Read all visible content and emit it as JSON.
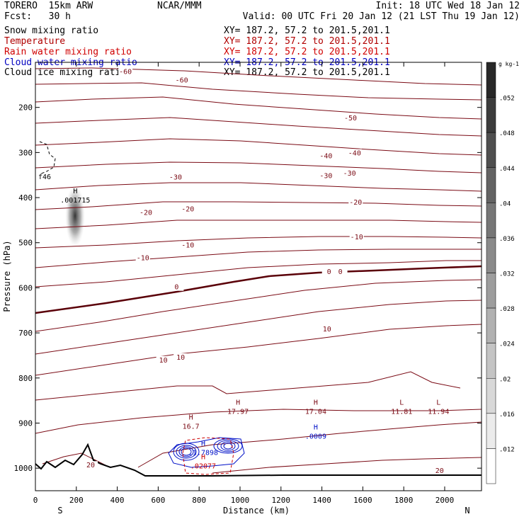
{
  "header": {
    "left_line1": "TORERO  15km ARW",
    "left_line2": "Fcst:   30 h",
    "center": "NCAR/MMM",
    "init": "Init: 18 UTC Wed 18 Jan 12",
    "valid": "Valid: 00 UTC Fri 20 Jan 12 (21 LST Thu 19 Jan 12)"
  },
  "fields": [
    {
      "name": "Snow mixing ratio",
      "xy": "XY= 187.2, 57.2 to 201.5,201.1",
      "color": "#000000"
    },
    {
      "name": "Temperature",
      "xy": "XY= 187.2, 57.2 to 201.5,201.1",
      "color": "#b00000"
    },
    {
      "name": "Rain water mixing ratio",
      "xy": "XY= 187.2, 57.2 to 201.5,201.1",
      "color": "#d00000"
    },
    {
      "name": "Cloud water mixing ratio",
      "xy": "XY= 187.2, 57.2 to 201.5,201.1",
      "color": "#0000c0"
    },
    {
      "name": "Cloud ice mixing ratio",
      "xy": "XY= 187.2, 57.2 to 201.5,201.1",
      "color": "#000000"
    }
  ],
  "colors": {
    "temperature": "#7a0a14",
    "freezing": "#5a0008",
    "rain": "#cc0000",
    "cloud_water": "#0010c8",
    "terrain": "#000000"
  },
  "chart_data": {
    "type": "contour cross-section",
    "xlabel": "Distance (km)",
    "ylabel": "Pressure (hPa)",
    "xlim": [
      0,
      2180
    ],
    "ylim": [
      1050,
      100
    ],
    "x_ticks": [
      0,
      200,
      400,
      600,
      800,
      1000,
      1200,
      1400,
      1600,
      1800,
      2000
    ],
    "y_ticks": [
      100,
      200,
      300,
      400,
      500,
      600,
      700,
      800,
      900,
      1000
    ],
    "x_end_labels": {
      "left": "S",
      "right": "N"
    },
    "colorbar": {
      "unit": "g kg-1",
      "ticks": [
        ".052",
        ".048",
        ".044",
        ".04",
        ".036",
        ".032",
        ".028",
        ".024",
        ".02",
        ".016",
        ".012"
      ]
    },
    "temperature_labels": [
      {
        "text": "-60",
        "x": 440,
        "p": 124
      },
      {
        "text": "-60",
        "x": 715,
        "p": 143
      },
      {
        "text": "-50",
        "x": 1540,
        "p": 227
      },
      {
        "text": "-40",
        "x": 1420,
        "p": 311
      },
      {
        "text": "-40",
        "x": 1560,
        "p": 305
      },
      {
        "text": "-30",
        "x": 685,
        "p": 358
      },
      {
        "text": "-30",
        "x": 1420,
        "p": 355
      },
      {
        "text": "-30",
        "x": 1535,
        "p": 350
      },
      {
        "text": "-20",
        "x": 540,
        "p": 437
      },
      {
        "text": "-20",
        "x": 745,
        "p": 429
      },
      {
        "text": "-20",
        "x": 1565,
        "p": 414
      },
      {
        "text": "-10",
        "x": 525,
        "p": 537
      },
      {
        "text": "-10",
        "x": 745,
        "p": 509
      },
      {
        "text": "-10",
        "x": 1570,
        "p": 491
      },
      {
        "text": "0",
        "x": 690,
        "p": 602
      },
      {
        "text": "0",
        "x": 1435,
        "p": 568
      },
      {
        "text": "0",
        "x": 1490,
        "p": 568
      },
      {
        "text": "10",
        "x": 625,
        "p": 764
      },
      {
        "text": "10",
        "x": 710,
        "p": 758
      },
      {
        "text": "10",
        "x": 1425,
        "p": 695
      },
      {
        "text": "20",
        "x": 270,
        "p": 997
      },
      {
        "text": "20",
        "x": 1975,
        "p": 1009
      }
    ],
    "extrema": [
      {
        "kind": "H",
        "value": "16.7",
        "x": 760,
        "p": 905,
        "field": "temperature"
      },
      {
        "kind": "H",
        "value": "17.97",
        "x": 990,
        "p": 872,
        "field": "temperature"
      },
      {
        "kind": "H",
        "value": "17.04",
        "x": 1370,
        "p": 872,
        "field": "temperature"
      },
      {
        "kind": "L",
        "value": "11.81",
        "x": 1790,
        "p": 872,
        "field": "temperature"
      },
      {
        "kind": "L",
        "value": "11.94",
        "x": 1970,
        "p": 872,
        "field": "temperature"
      },
      {
        "kind": "H",
        "value": ".0009",
        "x": 1370,
        "p": 927,
        "field": "cloud_water"
      },
      {
        "kind": "H",
        "value": ".1.7898",
        "x": 820,
        "p": 963,
        "field": "cloud_water"
      },
      {
        "kind": "H",
        "value": ".02077",
        "x": 820,
        "p": 993,
        "field": "rain"
      },
      {
        "kind": "H",
        "value": ".001715",
        "x": 195,
        "p": 403,
        "field": "snow"
      },
      {
        "kind": "",
        "value": "f46",
        "x": 45,
        "p": 351,
        "field": "cloud_ice"
      }
    ]
  }
}
